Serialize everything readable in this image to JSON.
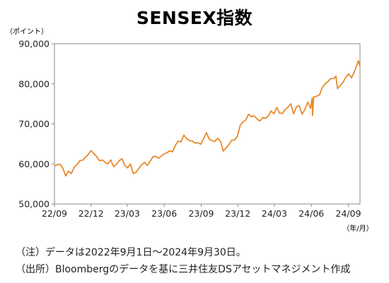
{
  "title": "SENSEX指数",
  "chart_data": {
    "type": "line",
    "title": "SENSEX指数",
    "y_unit_label": "（ポイント）",
    "x_unit_label": "（年/月）",
    "ylim": [
      50000,
      90000
    ],
    "y_ticks": [
      50000,
      60000,
      70000,
      80000,
      90000
    ],
    "y_tick_labels": [
      "50,000",
      "60,000",
      "70,000",
      "80,000",
      "90,000"
    ],
    "x_ticks": [
      "2022-09-01",
      "2022-12-01",
      "2023-03-01",
      "2023-06-01",
      "2023-09-01",
      "2023-12-01",
      "2024-03-01",
      "2024-06-01",
      "2024-09-01"
    ],
    "x_tick_labels": [
      "22/09",
      "22/12",
      "23/03",
      "23/06",
      "23/09",
      "23/12",
      "24/03",
      "24/06",
      "24/09"
    ],
    "xlim": [
      "2022-09-01",
      "2024-09-30"
    ],
    "grid": false,
    "line_color": "#E8892D",
    "series": [
      {
        "name": "",
        "points": [
          [
            "2022-09-01",
            59500
          ],
          [
            "2022-09-08",
            59800
          ],
          [
            "2022-09-15",
            59900
          ],
          [
            "2022-09-22",
            58900
          ],
          [
            "2022-09-29",
            57000
          ],
          [
            "2022-10-06",
            58200
          ],
          [
            "2022-10-13",
            57600
          ],
          [
            "2022-10-20",
            59200
          ],
          [
            "2022-10-27",
            59800
          ],
          [
            "2022-11-03",
            60800
          ],
          [
            "2022-11-10",
            60900
          ],
          [
            "2022-11-17",
            61700
          ],
          [
            "2022-11-24",
            62300
          ],
          [
            "2022-12-01",
            63300
          ],
          [
            "2022-12-08",
            62600
          ],
          [
            "2022-12-15",
            61800
          ],
          [
            "2022-12-22",
            60800
          ],
          [
            "2022-12-29",
            61000
          ],
          [
            "2023-01-05",
            60400
          ],
          [
            "2023-01-12",
            60000
          ],
          [
            "2023-01-19",
            61000
          ],
          [
            "2023-01-26",
            59300
          ],
          [
            "2023-02-02",
            59900
          ],
          [
            "2023-02-09",
            60800
          ],
          [
            "2023-02-16",
            61300
          ],
          [
            "2023-02-23",
            59600
          ],
          [
            "2023-03-02",
            59000
          ],
          [
            "2023-03-09",
            60000
          ],
          [
            "2023-03-16",
            57600
          ],
          [
            "2023-03-23",
            57900
          ],
          [
            "2023-03-30",
            58900
          ],
          [
            "2023-04-06",
            59800
          ],
          [
            "2023-04-13",
            60400
          ],
          [
            "2023-04-20",
            59600
          ],
          [
            "2023-04-27",
            60600
          ],
          [
            "2023-05-04",
            61800
          ],
          [
            "2023-05-11",
            61900
          ],
          [
            "2023-05-18",
            61400
          ],
          [
            "2023-05-25",
            62000
          ],
          [
            "2023-06-01",
            62500
          ],
          [
            "2023-06-08",
            62800
          ],
          [
            "2023-06-15",
            63300
          ],
          [
            "2023-06-22",
            63000
          ],
          [
            "2023-06-29",
            64700
          ],
          [
            "2023-07-06",
            65700
          ],
          [
            "2023-07-13",
            65500
          ],
          [
            "2023-07-20",
            67200
          ],
          [
            "2023-07-27",
            66300
          ],
          [
            "2023-08-03",
            65800
          ],
          [
            "2023-08-10",
            65700
          ],
          [
            "2023-08-17",
            65200
          ],
          [
            "2023-08-24",
            65300
          ],
          [
            "2023-08-31",
            64900
          ],
          [
            "2023-09-07",
            66300
          ],
          [
            "2023-09-14",
            67800
          ],
          [
            "2023-09-21",
            66200
          ],
          [
            "2023-09-28",
            65800
          ],
          [
            "2023-10-05",
            65600
          ],
          [
            "2023-10-12",
            66400
          ],
          [
            "2023-10-19",
            65600
          ],
          [
            "2023-10-26",
            63200
          ],
          [
            "2023-11-02",
            64000
          ],
          [
            "2023-11-09",
            64800
          ],
          [
            "2023-11-16",
            65900
          ],
          [
            "2023-11-23",
            66000
          ],
          [
            "2023-11-30",
            66900
          ],
          [
            "2023-12-07",
            69600
          ],
          [
            "2023-12-14",
            70500
          ],
          [
            "2023-12-21",
            71000
          ],
          [
            "2023-12-28",
            72400
          ],
          [
            "2024-01-04",
            71800
          ],
          [
            "2024-01-11",
            72000
          ],
          [
            "2024-01-18",
            71200
          ],
          [
            "2024-01-25",
            70700
          ],
          [
            "2024-02-01",
            71600
          ],
          [
            "2024-02-08",
            71400
          ],
          [
            "2024-02-15",
            72000
          ],
          [
            "2024-02-22",
            73200
          ],
          [
            "2024-02-29",
            72500
          ],
          [
            "2024-03-07",
            74100
          ],
          [
            "2024-03-14",
            72700
          ],
          [
            "2024-03-21",
            72600
          ],
          [
            "2024-03-28",
            73600
          ],
          [
            "2024-04-04",
            74200
          ],
          [
            "2024-04-11",
            75000
          ],
          [
            "2024-04-18",
            72500
          ],
          [
            "2024-04-25",
            74300
          ],
          [
            "2024-05-02",
            74500
          ],
          [
            "2024-05-09",
            72400
          ],
          [
            "2024-05-16",
            73600
          ],
          [
            "2024-05-23",
            75400
          ],
          [
            "2024-05-30",
            73900
          ],
          [
            "2024-06-03",
            76500
          ],
          [
            "2024-06-04",
            72100
          ],
          [
            "2024-06-07",
            76700
          ],
          [
            "2024-06-14",
            76900
          ],
          [
            "2024-06-21",
            77200
          ],
          [
            "2024-06-28",
            79000
          ],
          [
            "2024-07-05",
            80000
          ],
          [
            "2024-07-12",
            80500
          ],
          [
            "2024-07-19",
            81300
          ],
          [
            "2024-07-26",
            81300
          ],
          [
            "2024-08-01",
            81900
          ],
          [
            "2024-08-05",
            78800
          ],
          [
            "2024-08-12",
            79600
          ],
          [
            "2024-08-19",
            80400
          ],
          [
            "2024-08-26",
            81700
          ],
          [
            "2024-09-02",
            82500
          ],
          [
            "2024-09-09",
            81500
          ],
          [
            "2024-09-16",
            83000
          ],
          [
            "2024-09-23",
            84900
          ],
          [
            "2024-09-26",
            85800
          ],
          [
            "2024-09-30",
            84300
          ]
        ]
      }
    ]
  },
  "notes": [
    "（注）データは2022年9月1日～2024年9月30日。",
    "（出所）Bloombergのデータを基に三井住友DSアセットマネジメント作成"
  ]
}
